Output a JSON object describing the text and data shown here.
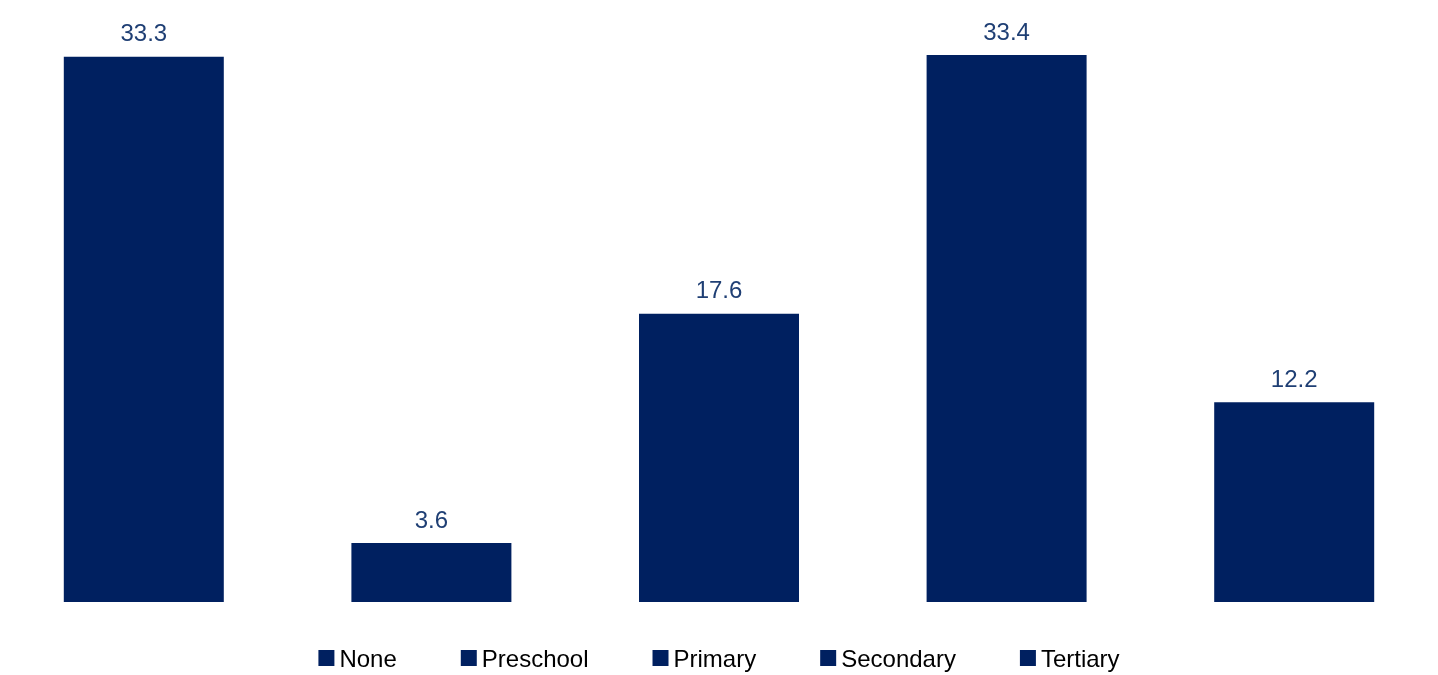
{
  "chart_data": {
    "type": "bar",
    "categories": [
      null,
      null,
      null,
      null,
      null
    ],
    "stacked": true,
    "series": [
      {
        "name": "None",
        "color": "#002060",
        "values": [
          33.3,
          null,
          null,
          null,
          null
        ]
      },
      {
        "name": "Preschool",
        "color": "#002060",
        "values": [
          null,
          3.6,
          null,
          null,
          null
        ]
      },
      {
        "name": "Primary",
        "color": "#002060",
        "values": [
          null,
          null,
          17.6,
          null,
          null
        ]
      },
      {
        "name": "Secondary",
        "color": "#002060",
        "values": [
          null,
          null,
          null,
          33.4,
          null
        ]
      },
      {
        "name": "Tertiary",
        "color": "#002060",
        "values": [
          null,
          null,
          null,
          null,
          12.2
        ]
      }
    ],
    "data_labels": true,
    "legend": "bottom",
    "grid": false
  }
}
